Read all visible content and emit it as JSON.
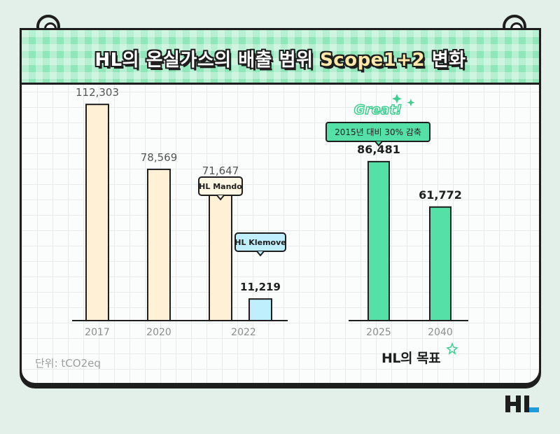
{
  "title_main": "HL의 온실가스의 배출 범위 ",
  "title_accent": "Scope1+2",
  "title_tail": " 변화",
  "unit_label": "단위: tCO2eq",
  "goal_label": "HL의 목표",
  "great_label": "Great!",
  "colors": {
    "actual": "#fff0d6",
    "klemove": "#bfeefc",
    "target": "#54e0a6",
    "header": "#8fe6b8",
    "outline": "#1e1e1e"
  },
  "chart_data": [
    {
      "type": "bar",
      "title": "",
      "ylim": [
        0,
        120000
      ],
      "bars": [
        {
          "category": "2017",
          "value": 112303,
          "label": "112,303"
        },
        {
          "category": "2020",
          "value": 78569,
          "label": "78,569"
        },
        {
          "category": "2022",
          "value": 71647,
          "label": "71,647",
          "tag": "HL Mando"
        },
        {
          "category": "2022",
          "value": 11219,
          "label": "11,219",
          "tag": "HL Klemove"
        }
      ],
      "tick_labels": [
        "2017",
        "2020",
        "2022"
      ]
    },
    {
      "type": "bar",
      "title": "",
      "ylim": [
        0,
        120000
      ],
      "bars": [
        {
          "category": "2025",
          "value": 86481,
          "label": "86,481"
        },
        {
          "category": "2040",
          "value": 61772,
          "label": "61,772"
        }
      ],
      "tick_labels": [
        "2025",
        "2040"
      ],
      "callout": "2015년 대비 30% 감축"
    }
  ]
}
